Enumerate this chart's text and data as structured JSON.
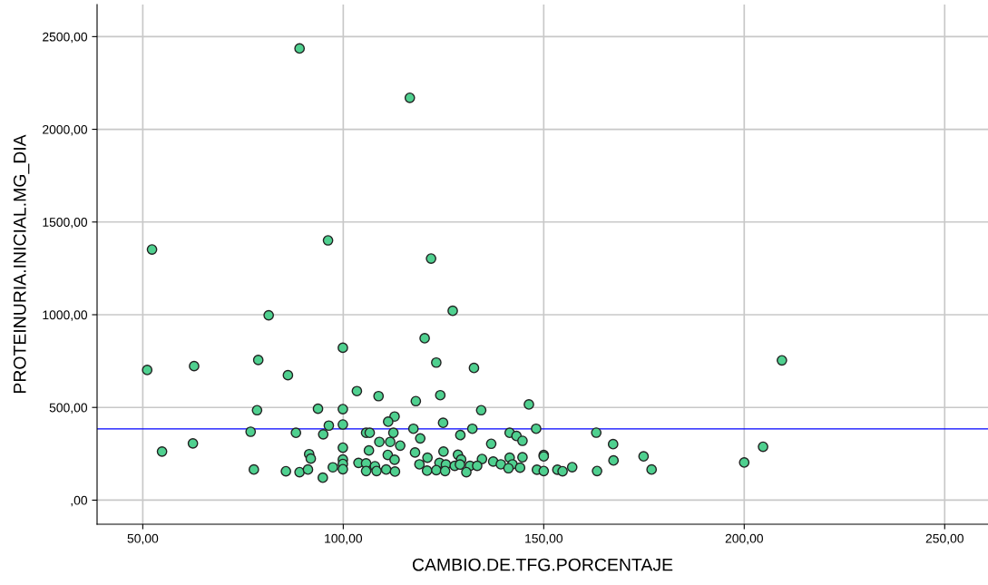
{
  "chart_data": {
    "type": "scatter",
    "xlabel": "CAMBIO.DE.TFG.PORCENTAJE",
    "ylabel": "PROTEINURIA.INICIAL.MG_DIA",
    "x": [
      52.3,
      96.2,
      81.4,
      99.9,
      51.1,
      62.8,
      78.8,
      86.2,
      103.4,
      108.8,
      78.5,
      93.7,
      99.9,
      112.8,
      111.2,
      96.4,
      99.9,
      76.9,
      88.2,
      95.0,
      105.7,
      106.6,
      112.5,
      109.0,
      111.7,
      54.8,
      62.5,
      99.9,
      106.4,
      111.1,
      112.8,
      91.5,
      91.9,
      99.9,
      99.9,
      99.9,
      103.8,
      105.7,
      105.7,
      107.9,
      108.3,
      110.7,
      112.9,
      77.7,
      85.7,
      89.1,
      91.2,
      97.4,
      94.9,
      127.3,
      120.3,
      123.2,
      132.6,
      118.1,
      124.2,
      134.4,
      146.3,
      117.5,
      124.9,
      132.2,
      148.1,
      119.2,
      129.2,
      141.5,
      143.2,
      144.7,
      136.9,
      114.2,
      117.9,
      125.0,
      121.0,
      128.6,
      129.4,
      134.6,
      141.5,
      144.7,
      150.0,
      150.0,
      119.0,
      124.0,
      125.6,
      127.8,
      129.1,
      131.6,
      133.4,
      137.4,
      139.3,
      142.2,
      141.2,
      144.1,
      120.9,
      123.2,
      125.4,
      130.7,
      148.3,
      150.0,
      153.4,
      154.7,
      157.1,
      209.4,
      163.1,
      167.3,
      167.4,
      174.9,
      176.9,
      163.3,
      204.7,
      200.0,
      89.1,
      116.6,
      121.9
    ],
    "values": [
      1352,
      1401,
      997,
      822,
      702,
      723,
      756,
      674,
      588,
      561,
      485,
      493,
      491,
      451,
      423,
      402,
      408,
      369,
      363,
      355,
      363,
      363,
      363,
      314,
      314,
      262,
      306,
      283,
      268,
      244,
      218,
      248,
      224,
      219,
      195,
      167,
      201,
      198,
      157,
      183,
      157,
      165,
      154,
      165,
      156,
      151,
      165,
      177,
      121,
      1021,
      873,
      742,
      713,
      534,
      566,
      485,
      516,
      385,
      417,
      385,
      385,
      333,
      351,
      363,
      346,
      320,
      304,
      294,
      257,
      262,
      229,
      245,
      219,
      222,
      229,
      231,
      244,
      236,
      193,
      201,
      192,
      185,
      192,
      185,
      185,
      208,
      193,
      193,
      172,
      175,
      159,
      162,
      157,
      151,
      164,
      157,
      164,
      156,
      178,
      754,
      364,
      302,
      214,
      236,
      165,
      157,
      288,
      203,
      2436,
      2170,
      1303
    ],
    "color": "#4fd08f",
    "marker": "circle",
    "grid": true,
    "xlim": [
      38.6,
      260.8
    ],
    "ylim": [
      -130,
      2673
    ],
    "xticks": [
      {
        "value": 50,
        "label": "50,00"
      },
      {
        "value": 100,
        "label": "100,00"
      },
      {
        "value": 150,
        "label": "150,00"
      },
      {
        "value": 200,
        "label": "200,00"
      },
      {
        "value": 250,
        "label": "250,00"
      }
    ],
    "yticks": [
      {
        "value": 0,
        "label": ",00"
      },
      {
        "value": 500,
        "label": "500,00"
      },
      {
        "value": 1000,
        "label": "1000,00"
      },
      {
        "value": 1500,
        "label": "1500,00"
      },
      {
        "value": 2000,
        "label": "2000,00"
      },
      {
        "value": 2500,
        "label": "2500,00"
      }
    ],
    "ref_lines": [
      {
        "axis": "y",
        "value": 384,
        "color": "#0000ff"
      }
    ]
  }
}
